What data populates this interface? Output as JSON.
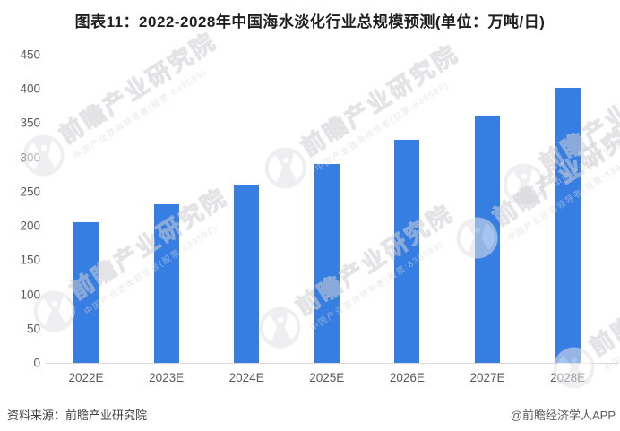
{
  "page": {
    "title": "图表11：2022-2028年中国海水淡化行业总规模预测(单位：万吨/日)"
  },
  "footer": {
    "source": "资料来源：前瞻产业研究院",
    "credit": "@前瞻经济学人APP"
  },
  "watermark": {
    "text": "前瞻产业研究院",
    "subtext": "中国产业咨询领导者(股票:839599)"
  },
  "colors": {
    "bar": "#377EE2",
    "axis_line": "#D9D9D9",
    "tick_label": "#595959",
    "title_text": "#1F1F1F",
    "source_text": "#404040",
    "credit_text": "#595959",
    "watermark_stroke": "#CFCFD4"
  },
  "chart_data": {
    "type": "bar",
    "title": "图表11：2022-2028年中国海水淡化行业总规模预测(单位：万吨/日)",
    "unit": "万吨/日",
    "categories": [
      "2022E",
      "2023E",
      "2024E",
      "2025E",
      "2026E",
      "2027E",
      "2028E"
    ],
    "values": [
      206,
      232,
      260,
      291,
      326,
      361,
      402
    ],
    "xlabel": "",
    "ylabel": "",
    "ylim": [
      0,
      450
    ],
    "yticks": [
      0,
      50,
      100,
      150,
      200,
      250,
      300,
      350,
      400,
      450
    ],
    "grid": false,
    "legend_position": "none",
    "bar_color": "#377EE2"
  }
}
